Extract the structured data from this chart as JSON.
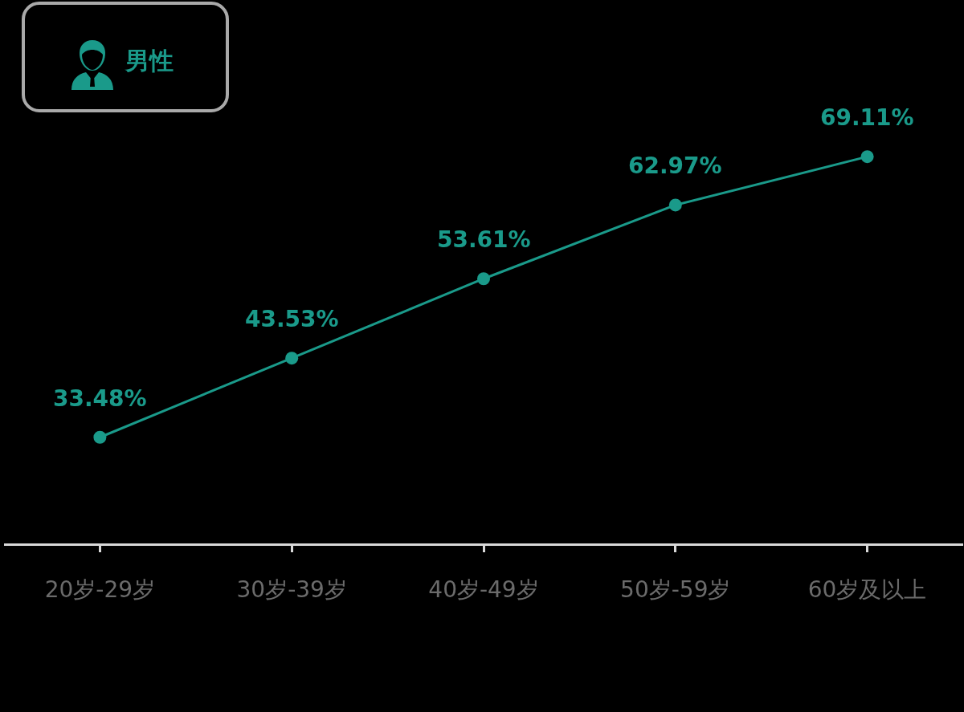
{
  "chart_data": {
    "type": "line",
    "title": "男性",
    "categories": [
      "20岁-29岁",
      "30岁-39岁",
      "40岁-49岁",
      "50岁-59岁",
      "60岁及以上"
    ],
    "series": [
      {
        "color": "#1a9a8a",
        "values": [
          33.48,
          43.53,
          53.61,
          62.97,
          69.11
        ],
        "value_labels": [
          "33.48%",
          "43.53%",
          "53.61%",
          "62.97%",
          "69.11%"
        ]
      }
    ],
    "ylim": [
      20,
      89
    ],
    "tick_labels": "x",
    "marker": "circle",
    "line_style": "solid"
  }
}
